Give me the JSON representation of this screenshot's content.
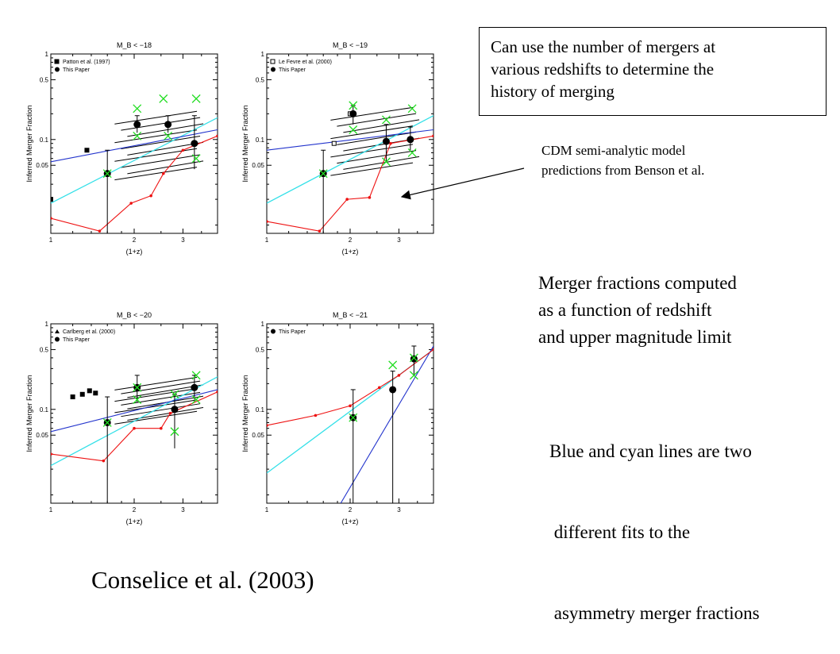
{
  "note_box": {
    "lines": [
      "Can use the number of mergers at",
      "various redshifts to determine the",
      "history of merging"
    ]
  },
  "cdm_note": {
    "lines": [
      "CDM semi-analytic model",
      "predictions from Benson et al."
    ]
  },
  "merger_text": {
    "lines": [
      "Merger fractions computed",
      "as a function of redshift",
      "and upper magnitude limit"
    ]
  },
  "fits_text": {
    "lines": [
      "Blue and cyan lines are two",
      " different fits to the",
      " asymmetry merger fractions"
    ]
  },
  "citation": "Conselice et al. (2003)",
  "colors": {
    "blue_fit": "#2233cc",
    "cyan_fit": "#33e0e8",
    "red_model": "#ee1111",
    "green_marker": "#22dd22"
  },
  "chart_data": [
    {
      "type": "scatter",
      "title": "M_B < −18",
      "xlabel": "(1+z)",
      "ylabel": "Inferred Merger Fraction",
      "xscale": "log",
      "yscale": "log",
      "xlim": [
        1.0,
        4.0
      ],
      "ylim": [
        0.008,
        1.0
      ],
      "xticks": [
        "1",
        "2",
        "3"
      ],
      "yticks": [
        "1",
        "0.5",
        "0.1",
        "0.05"
      ],
      "legend": [
        "Patton et al. (1997)",
        "This Paper"
      ],
      "legend_placement": "top-left",
      "comparison_points": [
        {
          "x": 1.0,
          "y": 0.02
        },
        {
          "x": 1.35,
          "y": 0.075
        }
      ],
      "this_paper": [
        {
          "x": 1.6,
          "y": 0.04,
          "ylo": 0.008,
          "yhi": 0.075
        },
        {
          "x": 2.05,
          "y": 0.15,
          "ylo": 0.12,
          "yhi": 0.19
        },
        {
          "x": 2.65,
          "y": 0.15,
          "ylo": 0.12,
          "yhi": 0.19
        },
        {
          "x": 3.3,
          "y": 0.09,
          "ylo": 0.045,
          "yhi": 0.19
        }
      ],
      "green_x": [
        {
          "x": 1.6,
          "y": 0.04
        },
        {
          "x": 2.05,
          "y": 0.23
        },
        {
          "x": 2.05,
          "y": 0.11
        },
        {
          "x": 2.55,
          "y": 0.3
        },
        {
          "x": 2.65,
          "y": 0.11
        },
        {
          "x": 3.35,
          "y": 0.3
        },
        {
          "x": 3.35,
          "y": 0.06
        }
      ],
      "blue_fit": [
        [
          1.0,
          0.055
        ],
        [
          4.0,
          0.13
        ]
      ],
      "cyan_fit": [
        [
          1.0,
          0.018
        ],
        [
          4.0,
          0.18
        ]
      ],
      "red_model": [
        [
          1.0,
          0.012
        ],
        [
          1.5,
          0.0085
        ],
        [
          1.95,
          0.018
        ],
        [
          2.3,
          0.022
        ],
        [
          2.55,
          0.04
        ],
        [
          3.0,
          0.075
        ],
        [
          4.0,
          0.11
        ]
      ],
      "hatch_band": {
        "x": [
          1.7,
          3.6
        ],
        "y": [
          0.04,
          0.18
        ]
      }
    },
    {
      "type": "scatter",
      "title": "M_B < −19",
      "xlabel": "(1+z)",
      "ylabel": "Inferred Merger Fraction",
      "xscale": "log",
      "yscale": "log",
      "xlim": [
        1.0,
        4.0
      ],
      "ylim": [
        0.008,
        1.0
      ],
      "xticks": [
        "1",
        "2",
        "3"
      ],
      "yticks": [
        "1",
        "0.5",
        "0.1",
        "0.05"
      ],
      "legend": [
        "Le Fevre et al. (2000)",
        "This Paper"
      ],
      "legend_placement": "top-left",
      "comparison_points": [
        {
          "x": 1.75,
          "y": 0.09
        },
        {
          "x": 2.0,
          "y": 0.2
        }
      ],
      "this_paper": [
        {
          "x": 1.6,
          "y": 0.04,
          "ylo": 0.008,
          "yhi": 0.075
        },
        {
          "x": 2.05,
          "y": 0.2,
          "ylo": 0.15,
          "yhi": 0.25
        },
        {
          "x": 2.7,
          "y": 0.095,
          "ylo": 0.055,
          "yhi": 0.15
        },
        {
          "x": 3.3,
          "y": 0.1,
          "ylo": 0.075,
          "yhi": 0.14
        }
      ],
      "green_x": [
        {
          "x": 1.6,
          "y": 0.04
        },
        {
          "x": 2.05,
          "y": 0.25
        },
        {
          "x": 2.05,
          "y": 0.13
        },
        {
          "x": 2.7,
          "y": 0.17
        },
        {
          "x": 2.7,
          "y": 0.055
        },
        {
          "x": 3.35,
          "y": 0.23
        },
        {
          "x": 3.35,
          "y": 0.07
        }
      ],
      "blue_fit": [
        [
          1.0,
          0.075
        ],
        [
          4.0,
          0.13
        ]
      ],
      "cyan_fit": [
        [
          1.0,
          0.018
        ],
        [
          4.0,
          0.19
        ]
      ],
      "red_model": [
        [
          1.0,
          0.011
        ],
        [
          1.55,
          0.0085
        ],
        [
          1.95,
          0.02
        ],
        [
          2.35,
          0.021
        ],
        [
          2.8,
          0.09
        ],
        [
          4.0,
          0.11
        ]
      ],
      "hatch_band": {
        "x": [
          1.7,
          3.6
        ],
        "y": [
          0.045,
          0.2
        ]
      }
    },
    {
      "type": "scatter",
      "title": "M_B < −20",
      "xlabel": "(1+z)",
      "ylabel": "Inferred Merger Fraction",
      "xscale": "log",
      "yscale": "log",
      "xlim": [
        1.0,
        4.0
      ],
      "ylim": [
        0.008,
        1.0
      ],
      "xticks": [
        "1",
        "2",
        "3"
      ],
      "yticks": [
        "1",
        "0.5",
        "0.1",
        "0.05"
      ],
      "legend": [
        "Carlberg et al. (2000)",
        "This Paper"
      ],
      "legend_placement": "top-left",
      "comparison_points": [
        {
          "x": 1.2,
          "y": 0.14
        },
        {
          "x": 1.3,
          "y": 0.15
        },
        {
          "x": 1.38,
          "y": 0.165
        },
        {
          "x": 1.45,
          "y": 0.155
        }
      ],
      "this_paper": [
        {
          "x": 1.6,
          "y": 0.07,
          "ylo": 0.008,
          "yhi": 0.14
        },
        {
          "x": 2.05,
          "y": 0.18,
          "ylo": 0.12,
          "yhi": 0.25
        },
        {
          "x": 2.8,
          "y": 0.1,
          "ylo": 0.035,
          "yhi": 0.15
        },
        {
          "x": 3.3,
          "y": 0.18,
          "ylo": 0.13,
          "yhi": 0.25
        }
      ],
      "green_x": [
        {
          "x": 1.6,
          "y": 0.07
        },
        {
          "x": 2.05,
          "y": 0.18
        },
        {
          "x": 2.05,
          "y": 0.13
        },
        {
          "x": 2.8,
          "y": 0.15
        },
        {
          "x": 2.8,
          "y": 0.055
        },
        {
          "x": 3.35,
          "y": 0.25
        },
        {
          "x": 3.35,
          "y": 0.13
        }
      ],
      "blue_fit": [
        [
          1.0,
          0.055
        ],
        [
          4.0,
          0.17
        ]
      ],
      "cyan_fit": [
        [
          1.0,
          0.022
        ],
        [
          4.0,
          0.24
        ]
      ],
      "red_model": [
        [
          1.0,
          0.03
        ],
        [
          1.55,
          0.025
        ],
        [
          2.0,
          0.06
        ],
        [
          2.5,
          0.06
        ],
        [
          2.7,
          0.09
        ],
        [
          4.0,
          0.16
        ]
      ],
      "hatch_band": {
        "x": [
          1.7,
          3.6
        ],
        "y": [
          0.08,
          0.2
        ]
      }
    },
    {
      "type": "scatter",
      "title": "M_B < −21",
      "xlabel": "(1+z)",
      "ylabel": "Inferred Merger Fraction",
      "xscale": "log",
      "yscale": "log",
      "xlim": [
        1.0,
        4.0
      ],
      "ylim": [
        0.008,
        1.0
      ],
      "xticks": [
        "1",
        "2",
        "3"
      ],
      "yticks": [
        "1",
        "0.5",
        "0.1",
        "0.05"
      ],
      "legend": [
        "This Paper"
      ],
      "legend_placement": "top-left",
      "comparison_points": [],
      "this_paper": [
        {
          "x": 2.05,
          "y": 0.08,
          "ylo": 0.008,
          "yhi": 0.17
        },
        {
          "x": 2.85,
          "y": 0.17,
          "ylo": 0.008,
          "yhi": 0.28
        },
        {
          "x": 3.4,
          "y": 0.39,
          "ylo": 0.25,
          "yhi": 0.55
        }
      ],
      "green_x": [
        {
          "x": 2.05,
          "y": 0.08
        },
        {
          "x": 2.85,
          "y": 0.33
        },
        {
          "x": 3.4,
          "y": 0.25
        },
        {
          "x": 3.4,
          "y": 0.4
        }
      ],
      "blue_fit": [
        [
          1.85,
          0.008
        ],
        [
          4.0,
          0.55
        ]
      ],
      "cyan_fit": [
        [
          1.0,
          0.018
        ],
        [
          4.0,
          0.5
        ]
      ],
      "red_model": [
        [
          1.0,
          0.065
        ],
        [
          1.5,
          0.085
        ],
        [
          2.0,
          0.11
        ],
        [
          2.55,
          0.18
        ],
        [
          3.0,
          0.25
        ],
        [
          4.0,
          0.5
        ]
      ],
      "hatch_band": null
    }
  ]
}
